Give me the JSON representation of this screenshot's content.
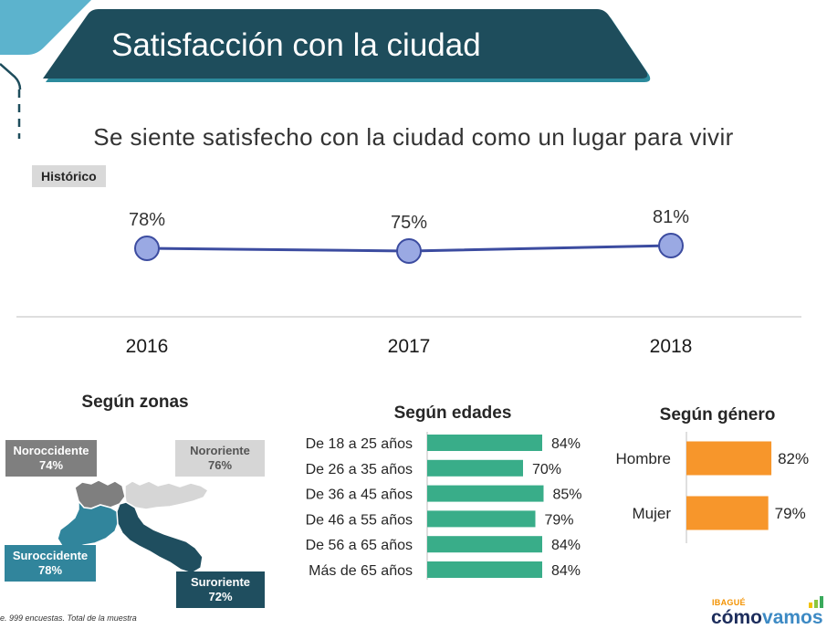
{
  "title": "Satisfacción con la ciudad",
  "subtitle": "Se siente satisfecho con la ciudad como un lugar para vivir",
  "colors": {
    "banner": "#1e4d5c",
    "banner_accent": "#2c8b9d",
    "corner_accent": "#5cb3cd"
  },
  "chart_data": [
    {
      "type": "line",
      "title": "Histórico",
      "x": [
        "2016",
        "2017",
        "2018"
      ],
      "values": [
        78,
        75,
        81
      ],
      "labels": [
        "78%",
        "75%",
        "81%"
      ],
      "ylim": [
        0,
        100
      ],
      "grid": false,
      "color": "#3c4ca0",
      "marker_color": "#9aa9e3"
    },
    {
      "type": "table",
      "title": "Según zonas",
      "categories": [
        "Noroccidente",
        "Nororiente",
        "Suroccidente",
        "Suroriente"
      ],
      "values": [
        74,
        76,
        78,
        72
      ],
      "labels": [
        "74%",
        "76%",
        "78%",
        "72%"
      ],
      "colors": [
        "#7f7f7f",
        "#d6d6d6",
        "#31859c",
        "#1f4e5f"
      ]
    },
    {
      "type": "bar",
      "orientation": "horizontal",
      "title": "Según edades",
      "categories": [
        "De 18 a 25 años",
        "De 26 a 35 años",
        "De 36 a 45 años",
        "De 46 a 55 años",
        "De 56 a 65 años",
        "Más de 65 años"
      ],
      "values": [
        84,
        70,
        85,
        79,
        84,
        84
      ],
      "labels": [
        "84%",
        "70%",
        "85%",
        "79%",
        "84%",
        "84%"
      ],
      "xlim": [
        0,
        100
      ],
      "color": "#39ad89"
    },
    {
      "type": "bar",
      "orientation": "horizontal",
      "title": "Según género",
      "categories": [
        "Hombre",
        "Mujer"
      ],
      "values": [
        82,
        79
      ],
      "labels": [
        "82%",
        "79%"
      ],
      "xlim": [
        0,
        100
      ],
      "color": "#f7962b"
    }
  ],
  "footer_note": "e. 999 encuestas. Total de la muestra",
  "logo": {
    "city": "IBAGUÉ",
    "word_1": "cómo",
    "word_2": "vamos"
  }
}
